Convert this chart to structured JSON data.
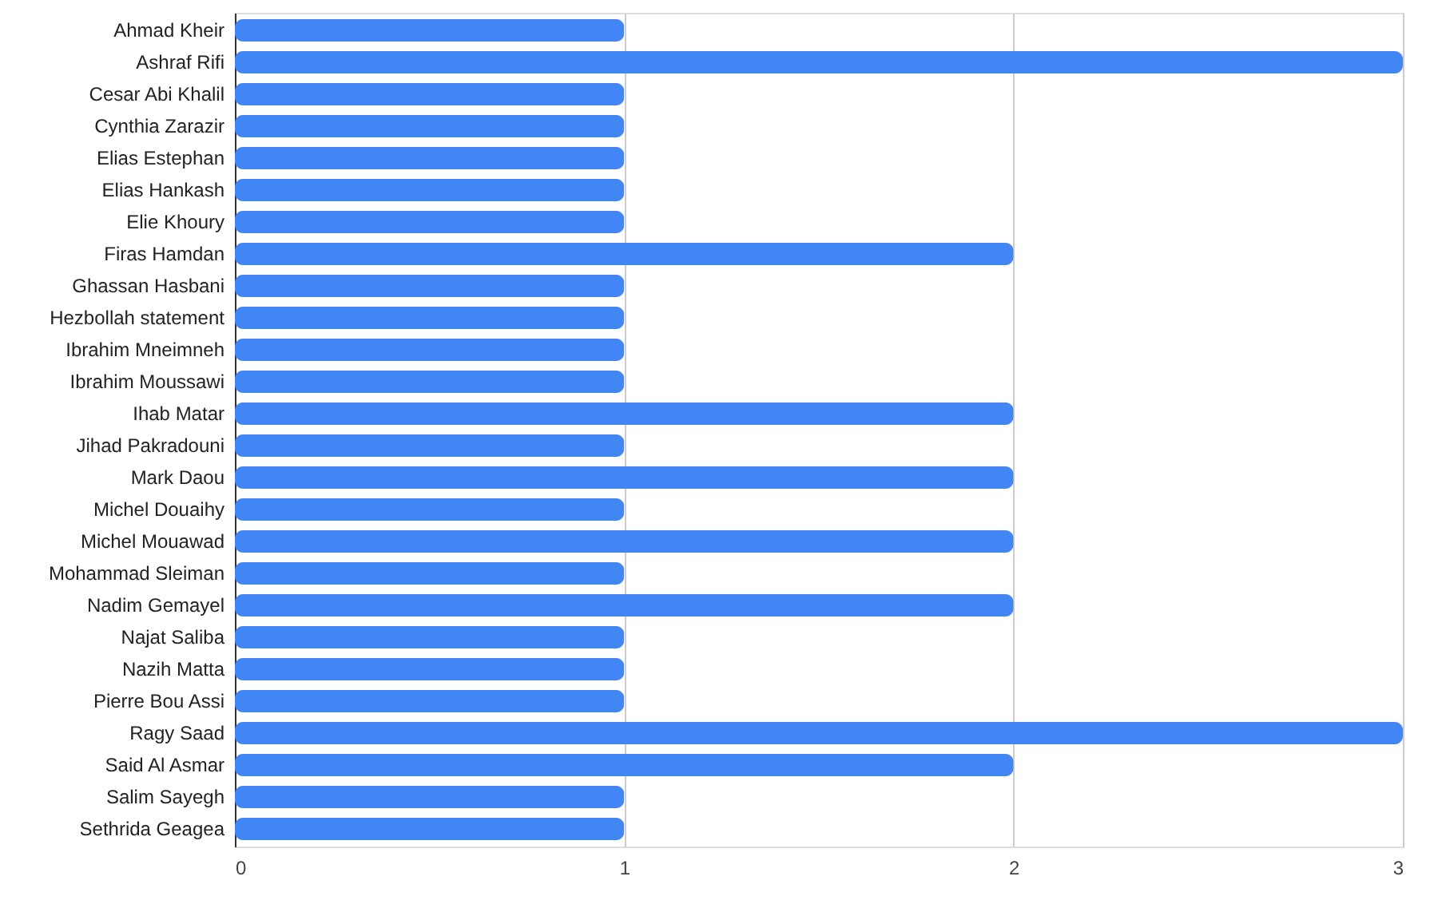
{
  "chart_data": {
    "type": "bar",
    "orientation": "horizontal",
    "categories": [
      "Ahmad Kheir",
      "Ashraf Rifi",
      "Cesar Abi Khalil",
      "Cynthia Zarazir",
      "Elias Estephan",
      "Elias Hankash",
      "Elie Khoury",
      "Firas Hamdan",
      "Ghassan Hasbani",
      "Hezbollah statement",
      "Ibrahim Mneimneh",
      "Ibrahim Moussawi",
      "Ihab Matar",
      "Jihad Pakradouni",
      "Mark Daou",
      "Michel Douaihy",
      "Michel Mouawad",
      "Mohammad Sleiman",
      "Nadim Gemayel",
      "Najat Saliba",
      "Nazih Matta",
      "Pierre Bou Assi",
      "Ragy Saad",
      "Said Al Asmar",
      "Salim Sayegh",
      "Sethrida Geagea"
    ],
    "values": [
      1,
      3,
      1,
      1,
      1,
      1,
      1,
      2,
      1,
      1,
      1,
      1,
      2,
      1,
      2,
      1,
      2,
      1,
      2,
      1,
      1,
      1,
      3,
      2,
      1,
      1
    ],
    "color": "#4285f4",
    "xlim": [
      0,
      3
    ],
    "xticks": [
      0,
      1,
      2,
      3
    ],
    "grid": "x"
  }
}
